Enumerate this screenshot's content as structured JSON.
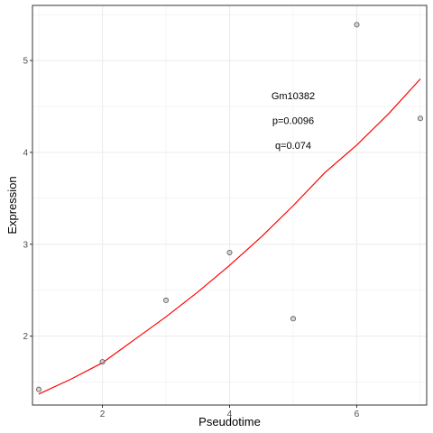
{
  "chart_data": {
    "type": "scatter",
    "xlabel": "Pseudotime",
    "ylabel": "Expression",
    "xlim": [
      0.9,
      7.1
    ],
    "ylim": [
      1.25,
      5.6
    ],
    "x_ticks": [
      2,
      4,
      6
    ],
    "y_ticks": [
      2,
      3,
      4,
      5
    ],
    "grid": true,
    "points": [
      {
        "x": 1,
        "y": 1.42
      },
      {
        "x": 2,
        "y": 1.72
      },
      {
        "x": 3,
        "y": 2.39
      },
      {
        "x": 4,
        "y": 2.91
      },
      {
        "x": 5,
        "y": 2.19
      },
      {
        "x": 6,
        "y": 5.39
      },
      {
        "x": 7,
        "y": 4.37
      }
    ],
    "fit_curve": {
      "x": [
        1.0,
        1.5,
        2.0,
        2.5,
        3.0,
        3.5,
        4.0,
        4.5,
        5.0,
        5.5,
        6.0,
        6.5,
        7.0
      ],
      "y": [
        1.37,
        1.53,
        1.71,
        1.96,
        2.21,
        2.48,
        2.77,
        3.08,
        3.42,
        3.78,
        4.08,
        4.42,
        4.8
      ]
    },
    "annotations": [
      "Gm10382",
      "p=0.0096",
      "q=0.074"
    ],
    "colors": {
      "fit": "#ff0000",
      "point_stroke": "#555555",
      "point_fill": "#bbbbbb",
      "grid": "#ebebeb",
      "panel_border": "#333333"
    }
  }
}
